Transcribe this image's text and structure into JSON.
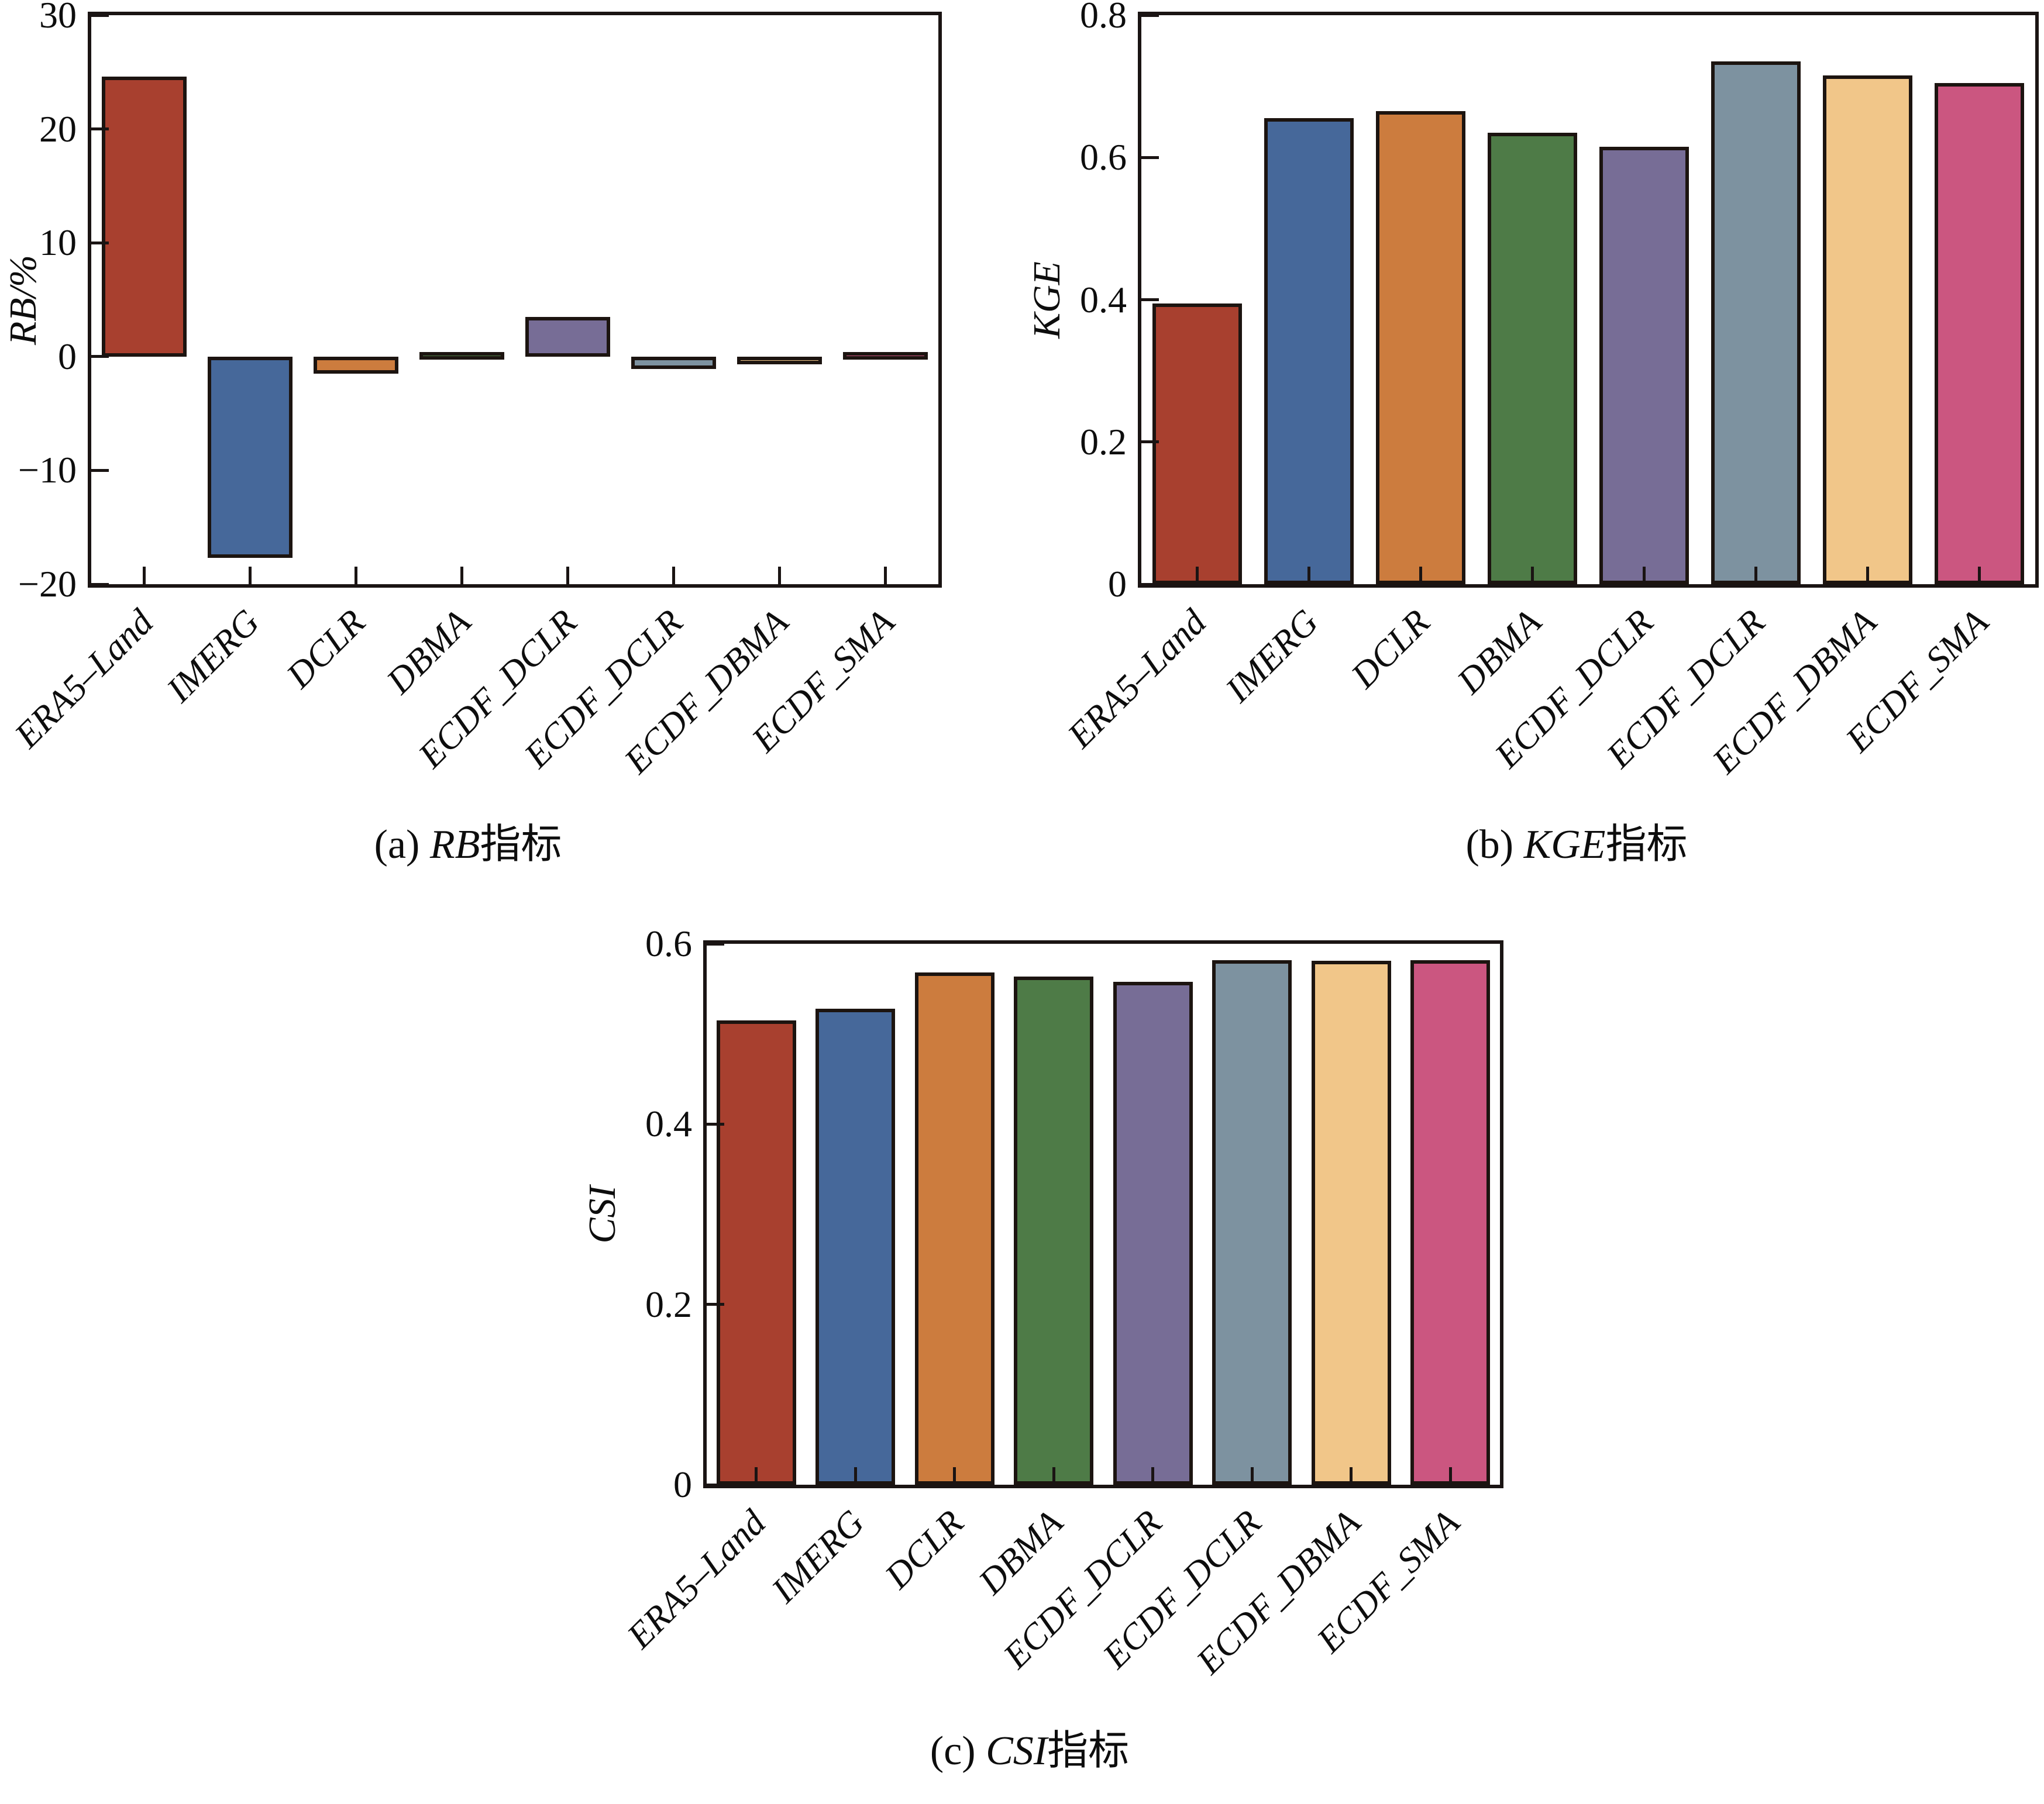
{
  "figure": {
    "background": "#ffffff",
    "text_color": "#0d0d0d",
    "axis_color": "#1a1413"
  },
  "bar_palette": [
    "#A8402F",
    "#46689A",
    "#CC7C3E",
    "#4E7B47",
    "#776D96",
    "#7D92A0",
    "#F1C689",
    "#CB5680"
  ],
  "chart_data": [
    {
      "type": "bar",
      "panel": "a",
      "caption_prefix": "(a) ",
      "caption_metric": "RB",
      "caption_suffix": "指标",
      "ylabel": "RB/%",
      "categories": [
        "ERA5–Land",
        "IMERG",
        "DCLR",
        "DBMA",
        "ECDF_DCLR",
        "ECDF_DCLR",
        "ECDF_DBMA",
        "ECDF_SMA"
      ],
      "values": [
        24.6,
        -17.7,
        -1.5,
        0.4,
        3.5,
        -1.1,
        -0.3,
        0.4
      ],
      "ylim": [
        -20,
        30
      ],
      "ytick_values": [
        30,
        20,
        10,
        0,
        -10,
        -20
      ],
      "ytick_labels": [
        "30",
        "20",
        "10",
        "0",
        "−10",
        "−20"
      ],
      "grid": false,
      "legend": "none"
    },
    {
      "type": "bar",
      "panel": "b",
      "caption_prefix": "(b) ",
      "caption_metric": "KGE",
      "caption_suffix": "指标",
      "ylabel": "KGE",
      "categories": [
        "ERA5–Land",
        "IMERG",
        "DCLR",
        "DBMA",
        "ECDF_DCLR",
        "ECDF_DCLR",
        "ECDF_DBMA",
        "ECDF_SMA"
      ],
      "values": [
        0.395,
        0.655,
        0.665,
        0.635,
        0.615,
        0.735,
        0.715,
        0.705
      ],
      "ylim": [
        0,
        0.8
      ],
      "ytick_values": [
        0.8,
        0.6,
        0.4,
        0.2,
        0
      ],
      "ytick_labels": [
        "0.8",
        "0.6",
        "0.4",
        "0.2",
        "0"
      ],
      "grid": false,
      "legend": "none"
    },
    {
      "type": "bar",
      "panel": "c",
      "caption_prefix": "(c) ",
      "caption_metric": "CSI",
      "caption_suffix": "指标",
      "ylabel": "CSI",
      "categories": [
        "ERA5–Land",
        "IMERG",
        "DCLR",
        "DBMA",
        "ECDF_DCLR",
        "ECDF_DCLR",
        "ECDF_DBMA",
        "ECDF_SMA"
      ],
      "values": [
        0.515,
        0.528,
        0.568,
        0.564,
        0.558,
        0.582,
        0.581,
        0.582
      ],
      "ylim": [
        0,
        0.6
      ],
      "ytick_values": [
        0.6,
        0.4,
        0.2,
        0
      ],
      "ytick_labels": [
        "0.6",
        "0.4",
        "0.2",
        "0"
      ],
      "grid": false,
      "legend": "none"
    }
  ]
}
